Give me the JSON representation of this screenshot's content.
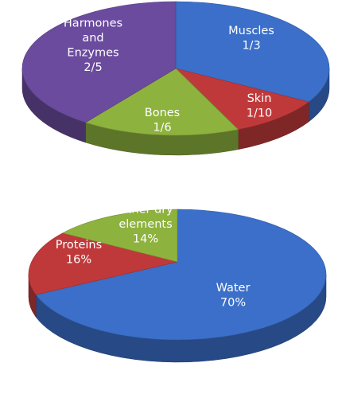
{
  "chart_data": [
    {
      "type": "pie",
      "style": "3d",
      "title": "",
      "slices": [
        {
          "name": "Muscles",
          "value_text": "1/3",
          "value": 0.3333,
          "color": "#3b6fc9"
        },
        {
          "name": "Skin",
          "value_text": "1/10",
          "value": 0.1,
          "color": "#c0393a"
        },
        {
          "name": "Bones",
          "value_text": "1/6",
          "value": 0.1667,
          "color": "#8db23e"
        },
        {
          "name": "Harmones and Enzymes",
          "value_text": "2/5",
          "value": 0.4,
          "color": "#6b4b9e"
        }
      ]
    },
    {
      "type": "pie",
      "style": "3d",
      "title": "",
      "slices": [
        {
          "name": "Water",
          "value_text": "70%",
          "value": 70,
          "color": "#3b6fc9"
        },
        {
          "name": "Proteins",
          "value_text": "16%",
          "value": 16,
          "color": "#c0393a"
        },
        {
          "name": "Other dry elements",
          "value_text": "14%",
          "value": 14,
          "color": "#8db23e"
        }
      ]
    }
  ]
}
